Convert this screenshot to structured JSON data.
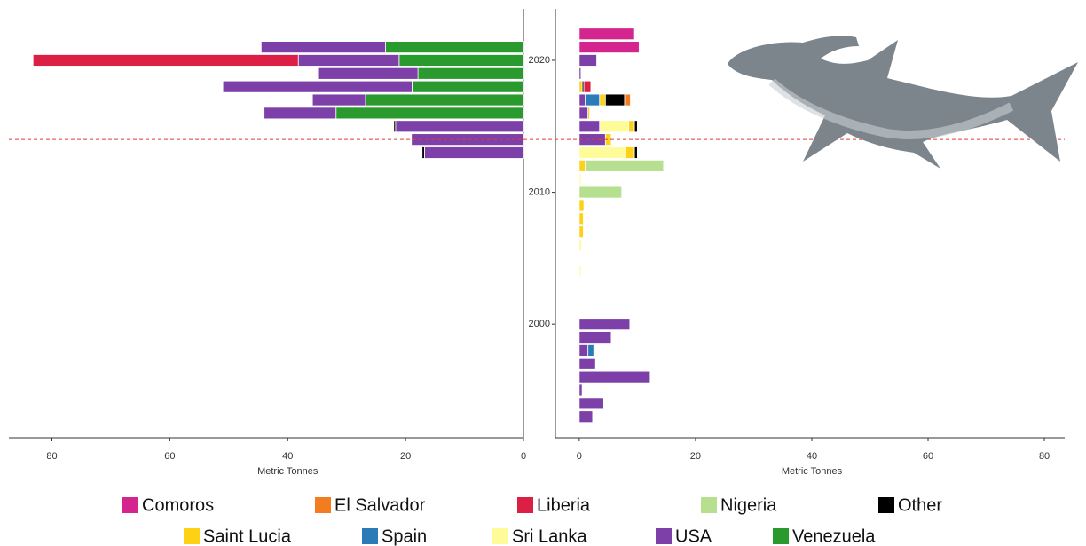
{
  "chart_data": [
    {
      "type": "hbar_stacked",
      "x_label": "Metric Tonnes",
      "x_reversed": true,
      "y": [
        2013,
        2014,
        2015,
        2016,
        2017,
        2018,
        2019,
        2020,
        2021
      ],
      "xlim": [
        0,
        87.3
      ],
      "xticks": [
        0,
        20,
        40,
        60,
        80
      ],
      "ylim": [
        1991.4,
        2023.9
      ],
      "hline": 2014,
      "hline_color": "#e03a3a",
      "series": [
        {
          "name": "Comoros",
          "color": "#d4258f",
          "values": [
            null,
            null,
            null,
            null,
            null,
            null,
            null,
            null,
            null
          ]
        },
        {
          "name": "El Salvador",
          "color": "#f47c20",
          "values": [
            null,
            null,
            null,
            null,
            null,
            null,
            null,
            null,
            null
          ]
        },
        {
          "name": "Liberia",
          "color": "#dc1f45",
          "values": [
            null,
            null,
            null,
            null,
            null,
            null,
            null,
            45.0,
            null
          ]
        },
        {
          "name": "Nigeria",
          "color": "#b6df8f",
          "values": [
            null,
            null,
            null,
            null,
            null,
            null,
            null,
            null,
            null
          ]
        },
        {
          "name": "Other",
          "color": "#000000",
          "values": [
            0.4,
            null,
            0.3,
            null,
            null,
            null,
            null,
            null,
            null
          ]
        },
        {
          "name": "Saint Lucia",
          "color": "#fcd116",
          "values": [
            null,
            null,
            null,
            null,
            null,
            null,
            null,
            null,
            null
          ]
        },
        {
          "name": "Spain",
          "color": "#2b7bb9",
          "values": [
            null,
            null,
            null,
            null,
            null,
            null,
            null,
            null,
            null
          ]
        },
        {
          "name": "Sri Lanka",
          "color": "#fdfc98",
          "values": [
            null,
            null,
            null,
            null,
            null,
            null,
            null,
            null,
            null
          ]
        },
        {
          "name": "USA",
          "color": "#7d40a8",
          "values": [
            16.8,
            19.0,
            21.7,
            12.2,
            9.0,
            32.1,
            17.0,
            17.1,
            21.1
          ]
        },
        {
          "name": "Venezuela",
          "color": "#2a9a2e",
          "values": [
            null,
            null,
            null,
            31.8,
            26.8,
            18.9,
            17.9,
            21.1,
            23.4
          ]
        }
      ]
    },
    {
      "type": "hbar_stacked",
      "x_label": "Metric Tonnes",
      "y": [
        1993,
        1994,
        1995,
        1996,
        1997,
        1998,
        1999,
        2000,
        2004,
        2006,
        2007,
        2008,
        2009,
        2010,
        2011,
        2012,
        2013,
        2014,
        2015,
        2016,
        2017,
        2018,
        2019,
        2020,
        2021,
        2022
      ],
      "xlim": [
        -4.1,
        83.5
      ],
      "xticks": [
        0,
        20,
        40,
        60,
        80
      ],
      "ylim": [
        1991.4,
        2023.9
      ],
      "yticks": [
        2000,
        2010,
        2020
      ],
      "hline": 2014,
      "hline_color": "#e03a3a",
      "series": [
        {
          "name": "Comoros",
          "color": "#d4258f",
          "values": [
            null,
            null,
            null,
            null,
            null,
            null,
            null,
            null,
            null,
            null,
            null,
            null,
            null,
            null,
            null,
            null,
            null,
            null,
            null,
            null,
            null,
            null,
            null,
            null,
            10.3,
            9.5
          ]
        },
        {
          "name": "El Salvador",
          "color": "#f47c20",
          "values": [
            null,
            null,
            null,
            null,
            null,
            null,
            null,
            null,
            null,
            null,
            null,
            null,
            null,
            null,
            null,
            null,
            null,
            null,
            null,
            null,
            1.0,
            null,
            null,
            null,
            null,
            null
          ]
        },
        {
          "name": "Liberia",
          "color": "#dc1f45",
          "values": [
            null,
            null,
            null,
            null,
            null,
            null,
            null,
            null,
            null,
            null,
            null,
            null,
            null,
            null,
            null,
            null,
            null,
            null,
            null,
            null,
            null,
            1.2,
            null,
            null,
            null,
            null
          ]
        },
        {
          "name": "Nigeria",
          "color": "#b6df8f",
          "values": [
            null,
            null,
            null,
            null,
            null,
            null,
            null,
            null,
            null,
            null,
            null,
            null,
            null,
            7.3,
            null,
            13.5,
            null,
            null,
            null,
            null,
            null,
            null,
            null,
            null,
            null,
            null
          ]
        },
        {
          "name": "Other",
          "color": "#000000",
          "values": [
            null,
            null,
            null,
            null,
            null,
            null,
            null,
            null,
            null,
            null,
            null,
            null,
            null,
            null,
            null,
            null,
            0.5,
            null,
            0.5,
            null,
            3.3,
            0.3,
            null,
            null,
            null,
            null
          ]
        },
        {
          "name": "Saint Lucia",
          "color": "#fcd116",
          "values": [
            null,
            null,
            null,
            null,
            null,
            null,
            null,
            null,
            null,
            null,
            0.7,
            0.7,
            0.8,
            null,
            null,
            1.0,
            1.5,
            1.0,
            1.0,
            0.3,
            1.0,
            0.5,
            null,
            null,
            null,
            null
          ]
        },
        {
          "name": "Spain",
          "color": "#2b7bb9",
          "values": [
            null,
            null,
            null,
            null,
            null,
            1.0,
            null,
            null,
            null,
            null,
            null,
            null,
            null,
            null,
            null,
            null,
            null,
            null,
            null,
            null,
            2.5,
            null,
            null,
            null,
            null,
            null
          ]
        },
        {
          "name": "Sri Lanka",
          "color": "#fdfc98",
          "values": [
            null,
            null,
            null,
            null,
            null,
            null,
            null,
            null,
            0.3,
            0.4,
            null,
            null,
            null,
            null,
            0.3,
            null,
            8.0,
            null,
            5.0,
            null,
            null,
            null,
            null,
            null,
            null,
            null
          ]
        },
        {
          "name": "USA",
          "color": "#7d40a8",
          "values": [
            2.3,
            4.2,
            0.5,
            12.2,
            2.8,
            1.5,
            5.5,
            8.7,
            null,
            null,
            null,
            null,
            null,
            null,
            null,
            null,
            null,
            4.5,
            3.5,
            1.5,
            1.0,
            null,
            0.3,
            3.0,
            null,
            null
          ]
        },
        {
          "name": "Venezuela",
          "color": "#2a9a2e",
          "values": [
            null,
            null,
            null,
            null,
            null,
            null,
            null,
            null,
            null,
            null,
            null,
            null,
            null,
            null,
            null,
            null,
            null,
            null,
            null,
            null,
            null,
            null,
            null,
            null,
            null,
            null
          ]
        }
      ]
    }
  ]
}
